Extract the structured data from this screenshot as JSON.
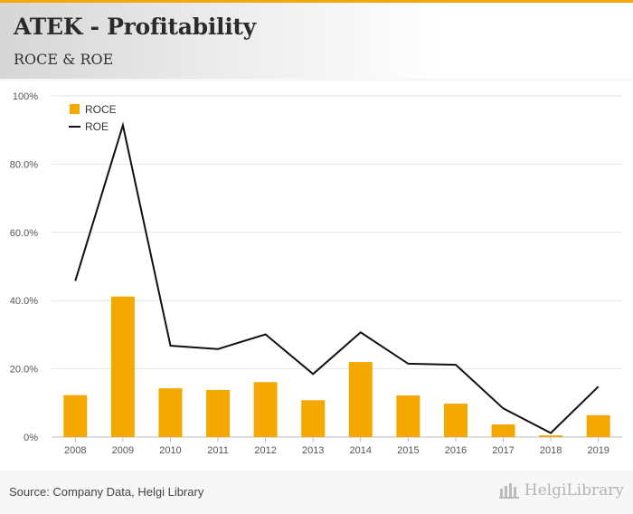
{
  "header": {
    "title": "ATEK - Profitability",
    "subtitle": "ROCE & ROE"
  },
  "footer": {
    "source": "Source: Company Data, Helgi Library",
    "brand": "HelgiLibrary"
  },
  "colors": {
    "accent": "#f5a800",
    "roce": "#f5a800",
    "roe": "#111111"
  },
  "chart_data": {
    "type": "bar",
    "categories": [
      "2008",
      "2009",
      "2010",
      "2011",
      "2012",
      "2013",
      "2014",
      "2015",
      "2016",
      "2017",
      "2018",
      "2019"
    ],
    "series": [
      {
        "name": "ROCE",
        "type": "bar",
        "values": [
          12.3,
          41.2,
          14.3,
          13.8,
          16.1,
          10.8,
          22.0,
          12.2,
          9.8,
          3.7,
          0.5,
          6.4
        ]
      },
      {
        "name": "ROE",
        "type": "line",
        "values": [
          45.8,
          91.4,
          26.8,
          25.8,
          30.1,
          18.5,
          30.7,
          21.5,
          21.2,
          8.4,
          1.2,
          14.8
        ]
      }
    ],
    "yticks": [
      "0%",
      "20.0%",
      "40.0%",
      "60.0%",
      "80.0%",
      "100%"
    ],
    "ylim": [
      0,
      100
    ],
    "grid": true,
    "legend": "top-left"
  }
}
